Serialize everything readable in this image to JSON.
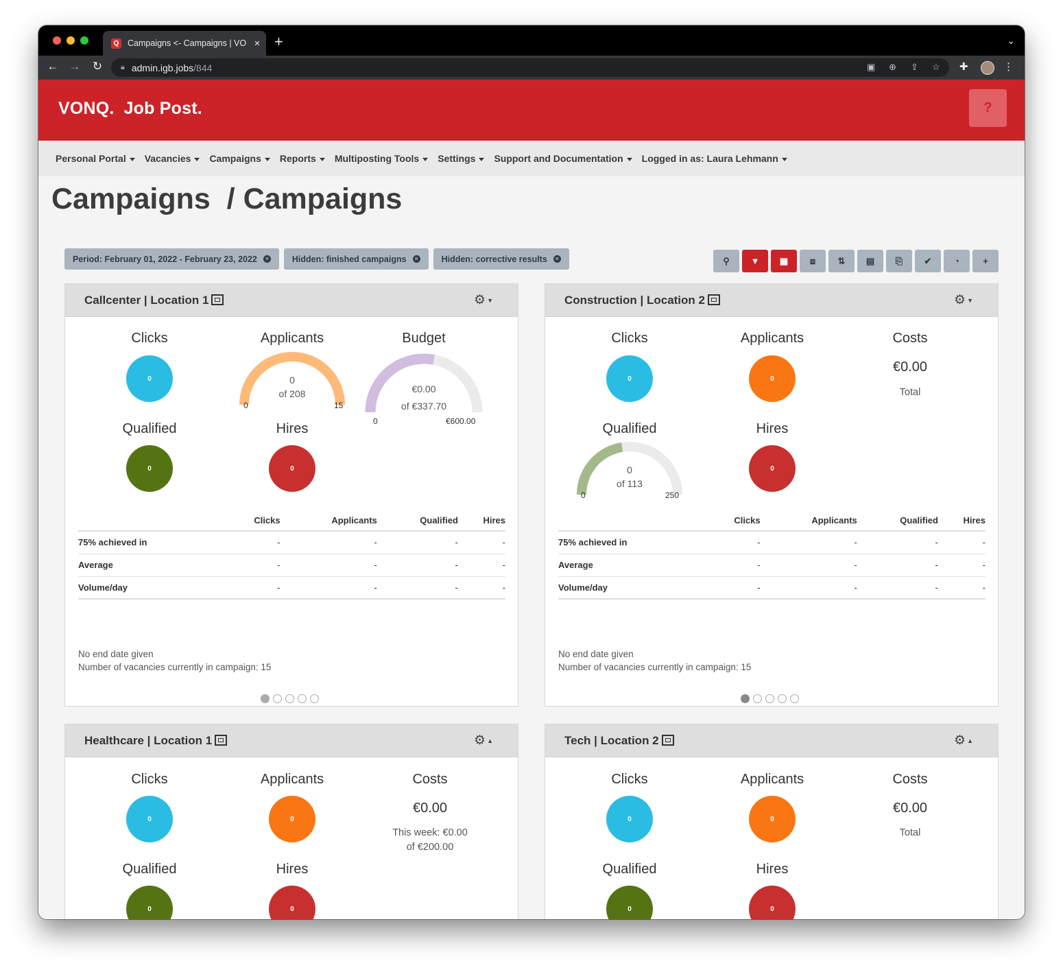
{
  "browser": {
    "tab_title": "Campaigns <- Campaigns | VO",
    "url_host": "admin.igb.jobs",
    "url_path": "/844"
  },
  "header": {
    "brand": "VONQ.",
    "product": "Job Post.",
    "help_label": "?"
  },
  "nav": [
    "Personal Portal",
    "Vacancies",
    "Campaigns",
    "Reports",
    "Multiposting Tools",
    "Settings",
    "Support and Documentation",
    "Logged in as: Laura Lehmann"
  ],
  "page_title": "Campaigns  / Campaigns",
  "filters": [
    "Period: February 01, 2022 - February 23, 2022",
    "Hidden: finished campaigns",
    "Hidden: corrective results"
  ],
  "toolbar": [
    "search-icon",
    "filter-icon",
    "calendar-icon",
    "frame-icon",
    "sort-icon",
    "table-icon",
    "excel-icon",
    "check-icon",
    "pie-icon",
    "plus-icon"
  ],
  "colors": {
    "brand_red": "#cc2328",
    "clicks": "#2bbce3",
    "applicants": "#f97613",
    "qualified": "#557312",
    "hires": "#c7302f"
  },
  "labels": {
    "clicks": "Clicks",
    "applicants": "Applicants",
    "qualified": "Qualified",
    "hires": "Hires",
    "budget": "Budget",
    "costs": "Costs",
    "total": "Total",
    "zero": "0"
  },
  "stats_table": {
    "headers": [
      "",
      "Clicks",
      "Applicants",
      "Qualified",
      "Hires"
    ],
    "rows": [
      [
        "75% achieved in",
        "-",
        "-",
        "-",
        "-"
      ],
      [
        "Average",
        "-",
        "-",
        "-",
        "-"
      ],
      [
        "Volume/day",
        "-",
        "-",
        "-",
        "-"
      ]
    ]
  },
  "notes": {
    "end_date": "No end date given",
    "vacancies": "Number of vacancies currently in campaign: 15"
  },
  "cards": [
    {
      "title": "Callcenter | Location 1",
      "applicants_gauge": {
        "value": "0",
        "of": "of 208",
        "min": "0",
        "max": "15",
        "fill": 1.0
      },
      "budget_gauge": {
        "value": "€0.00",
        "of": "of €337.70",
        "min": "0",
        "max": "€600.00",
        "fill": 0.56
      }
    },
    {
      "title": "Construction | Location 2",
      "costs_value": "€0.00",
      "costs_sub": "Total",
      "qualified_gauge": {
        "value": "0",
        "of": "of 113",
        "min": "0",
        "max": "250",
        "fill": 0.45
      }
    },
    {
      "title": "Healthcare | Location 1",
      "costs_value": "€0.00",
      "costs_sub1": "This week: €0.00",
      "costs_sub2": "of €200.00"
    },
    {
      "title": "Tech | Location 2",
      "costs_value": "€0.00",
      "costs_sub": "Total"
    }
  ]
}
